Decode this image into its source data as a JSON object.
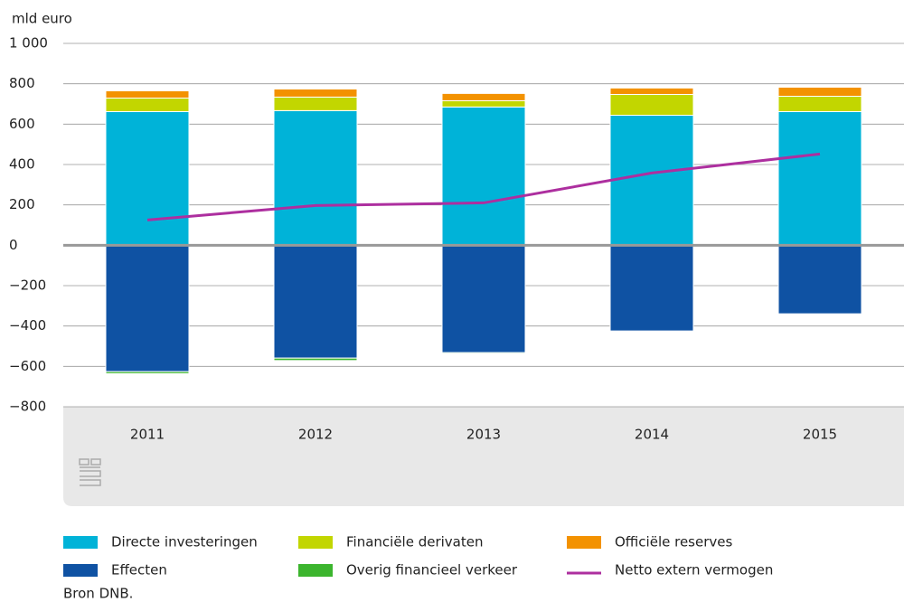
{
  "chart_data": {
    "type": "bar",
    "y_label": "mld euro",
    "categories": [
      "2011",
      "2012",
      "2013",
      "2014",
      "2015"
    ],
    "series": [
      {
        "name": "Directe investeringen",
        "color": "#00b3d8",
        "values": [
          662,
          667,
          685,
          644,
          662
        ]
      },
      {
        "name": "Financiële derivaten",
        "color": "#c2d600",
        "values": [
          67,
          67,
          31,
          103,
          76
        ]
      },
      {
        "name": "Officiële reserves",
        "color": "#f39200",
        "values": [
          36,
          40,
          36,
          32,
          45
        ]
      },
      {
        "name": "Effecten",
        "color": "#0f52a3",
        "values": [
          -626,
          -559,
          -532,
          -425,
          -340
        ]
      },
      {
        "name": "Overig financieel verkeer",
        "color": "#3cb52e",
        "values": [
          -10,
          -12,
          -5,
          -2,
          -2
        ]
      },
      {
        "name": "Netto extern vermogen",
        "color": "#ad2f9f",
        "type": "line",
        "values": [
          125,
          197,
          210,
          358,
          452
        ]
      }
    ],
    "ylim": [
      -800,
      1000
    ],
    "yticks": [
      {
        "value": -800,
        "label": "−800"
      },
      {
        "value": -600,
        "label": "−600"
      },
      {
        "value": -400,
        "label": "−400"
      },
      {
        "value": -200,
        "label": "−200"
      },
      0,
      200,
      400,
      600,
      800,
      {
        "value": 1000,
        "label": "1 000"
      }
    ],
    "grid": true,
    "source": "Bron DNB."
  }
}
